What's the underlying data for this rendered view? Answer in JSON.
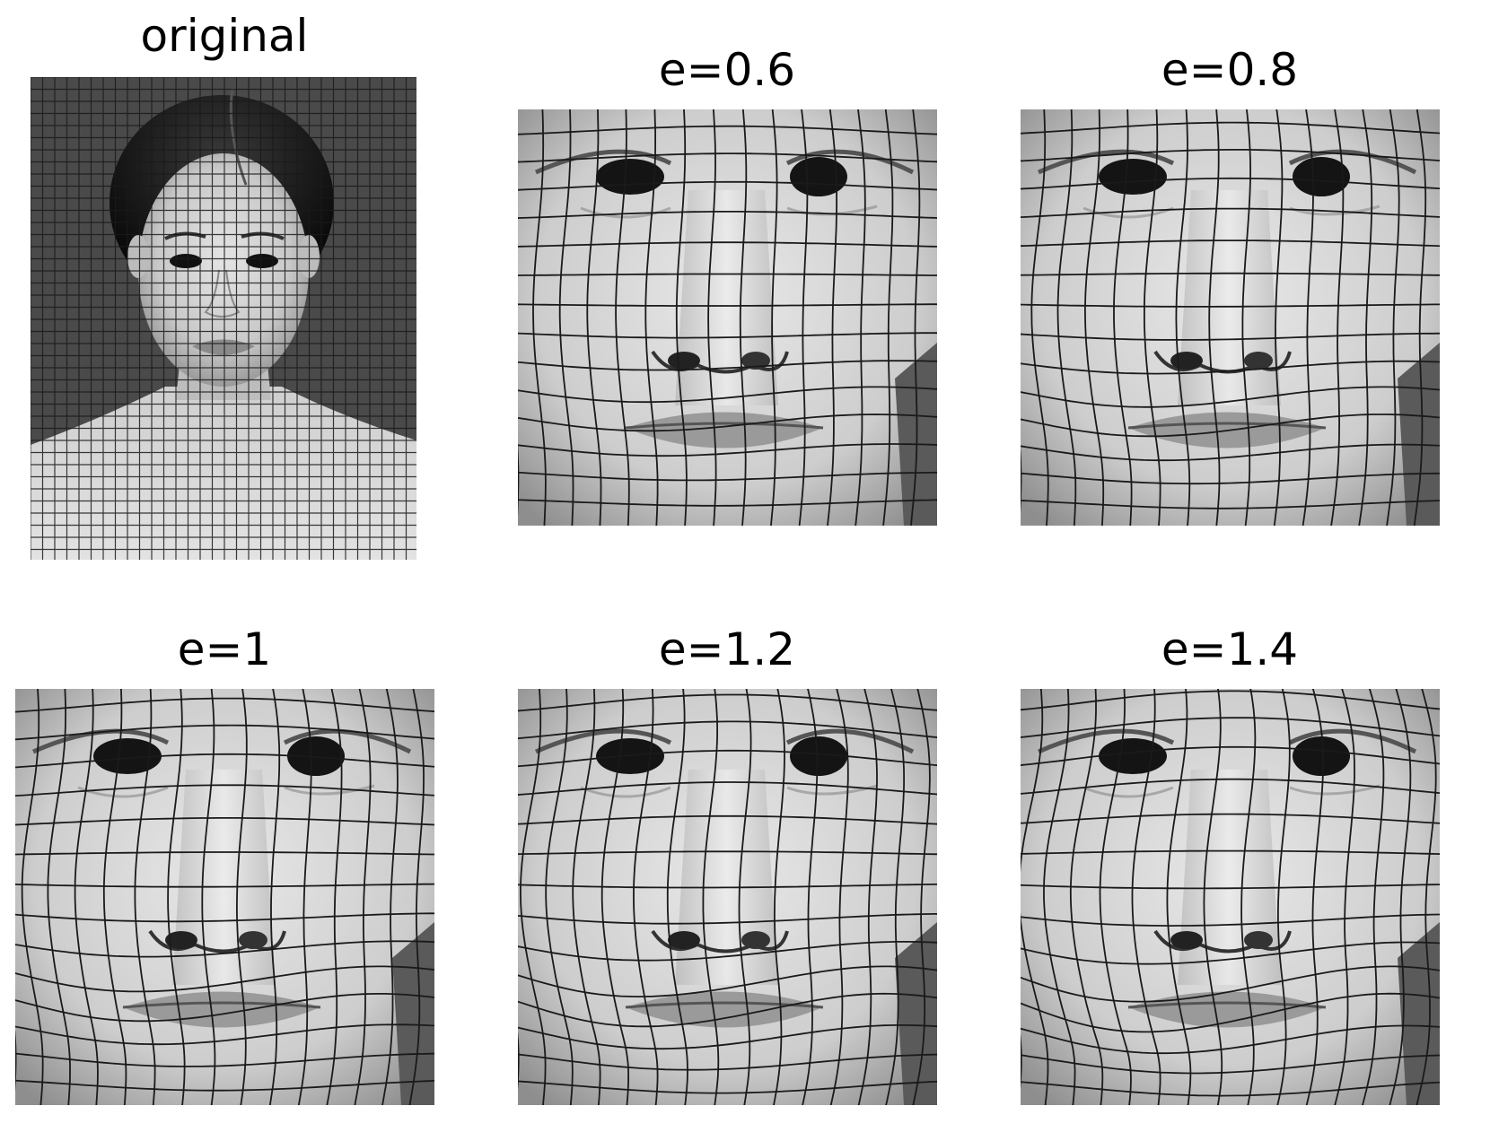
{
  "panels": [
    {
      "title": "original"
    },
    {
      "title": "e=0.6"
    },
    {
      "title": "e=0.8"
    },
    {
      "title": "e=1"
    },
    {
      "title": "e=1.2"
    },
    {
      "title": "e=1.4"
    }
  ],
  "colors": {
    "background": "#ffffff",
    "dark_backdrop": "#4a4a4a",
    "grid_line": "#1a1a1a"
  }
}
